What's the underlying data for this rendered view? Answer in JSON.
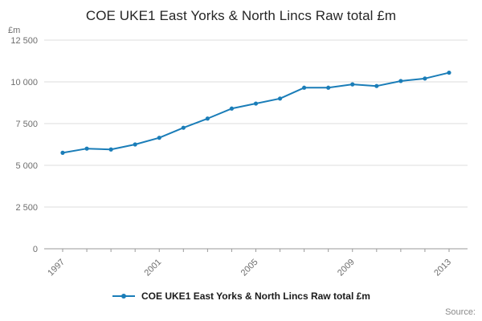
{
  "title": "COE UKE1 East Yorks & North Lincs Raw total £m",
  "y_unit_label": "£m",
  "legend": {
    "label": "COE UKE1 East Yorks & North Lincs Raw total £m"
  },
  "source_label": "Source:",
  "accent_color": "#1a7db8",
  "chart_data": {
    "type": "line",
    "title": "COE UKE1 East Yorks & North Lincs Raw total £m",
    "xlabel": "",
    "ylabel": "£m",
    "x": [
      1997,
      1998,
      1999,
      2000,
      2001,
      2002,
      2003,
      2004,
      2005,
      2006,
      2007,
      2008,
      2009,
      2010,
      2011,
      2012,
      2013
    ],
    "values": [
      5750,
      6000,
      5950,
      6250,
      6650,
      7250,
      7800,
      8400,
      8700,
      9000,
      9650,
      9650,
      9850,
      9750,
      10050,
      10200,
      10550
    ],
    "ylim": [
      0,
      12500
    ],
    "y_ticks": [
      0,
      2500,
      5000,
      7500,
      10000,
      12500
    ],
    "y_tick_labels": [
      "0",
      "2 500",
      "5 000",
      "7 500",
      "10 000",
      "12 500"
    ],
    "x_tick_labels_shown": [
      "1997",
      "2001",
      "2005",
      "2009",
      "2013"
    ],
    "grid": true,
    "legend_position": "bottom",
    "series_name": "COE UKE1 East Yorks & North Lincs Raw total £m"
  }
}
